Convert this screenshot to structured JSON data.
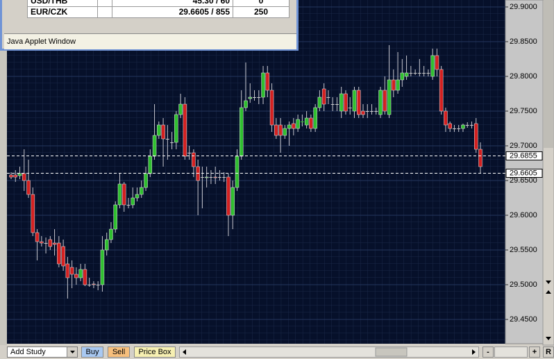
{
  "applet_window": {
    "rows": [
      [
        "USD/THB",
        "",
        "45.30 / 60",
        "0"
      ],
      [
        "EUR/CZK",
        "",
        "29.6605 / 855",
        "250"
      ]
    ],
    "status": "Java Applet Window"
  },
  "chart_data": {
    "type": "candlestick",
    "open": [
      29.658,
      29.658,
      29.657,
      29.66,
      29.65,
      29.63,
      29.575,
      29.562,
      29.56,
      29.565,
      29.56,
      29.56,
      29.555,
      29.53,
      29.525,
      29.515,
      29.51,
      29.522,
      29.5,
      29.501,
      29.5,
      29.5,
      29.55,
      29.565,
      29.58,
      29.615,
      29.645,
      29.615,
      29.615,
      29.625,
      29.63,
      29.64,
      29.66,
      29.685,
      29.715,
      29.73,
      29.71,
      29.705,
      29.705,
      29.745,
      29.76,
      29.69,
      29.69,
      29.67,
      29.655,
      29.654,
      29.655,
      29.655,
      29.655,
      29.655,
      29.655,
      29.6,
      29.64,
      29.685,
      29.755,
      29.768,
      29.77,
      29.77,
      29.77,
      29.805,
      29.78,
      29.73,
      29.73,
      29.715,
      29.725,
      29.732,
      29.725,
      29.734,
      29.73,
      29.74,
      29.725,
      29.755,
      29.782,
      29.77,
      29.76,
      29.76,
      29.75,
      29.775,
      29.755,
      29.75,
      29.78,
      29.75,
      29.75,
      29.75,
      29.75,
      29.745,
      29.78,
      29.745,
      29.795,
      29.78,
      29.795,
      29.8,
      29.805,
      29.805,
      29.805,
      29.805,
      29.805,
      29.8,
      29.83,
      29.81,
      29.75,
      29.732,
      29.725,
      29.725,
      29.725,
      29.73,
      29.73,
      29.732,
      29.695
    ],
    "high": [
      29.662,
      29.665,
      29.67,
      29.695,
      29.68,
      29.64,
      29.58,
      29.57,
      29.568,
      29.57,
      29.58,
      29.57,
      29.565,
      29.54,
      29.535,
      29.525,
      29.53,
      29.53,
      29.51,
      29.505,
      29.505,
      29.57,
      29.575,
      29.59,
      29.62,
      29.66,
      29.648,
      29.625,
      29.64,
      29.64,
      29.65,
      29.67,
      29.695,
      29.76,
      29.735,
      29.74,
      29.73,
      29.72,
      29.75,
      29.775,
      29.77,
      29.7,
      29.695,
      29.68,
      29.67,
      29.67,
      29.665,
      29.67,
      29.665,
      29.662,
      29.66,
      29.65,
      29.695,
      29.78,
      29.82,
      29.79,
      29.78,
      29.78,
      29.815,
      29.815,
      29.79,
      29.74,
      29.74,
      29.73,
      29.735,
      29.74,
      29.745,
      29.745,
      29.75,
      29.745,
      29.76,
      29.78,
      29.79,
      29.78,
      29.77,
      29.77,
      29.785,
      29.78,
      29.77,
      29.785,
      29.785,
      29.76,
      29.76,
      29.76,
      29.755,
      29.785,
      29.8,
      29.845,
      29.81,
      29.835,
      29.825,
      29.83,
      29.815,
      29.81,
      29.825,
      29.815,
      29.81,
      29.84,
      29.84,
      29.815,
      29.755,
      29.735,
      29.73,
      29.73,
      29.732,
      29.734,
      29.735,
      29.74,
      29.705
    ],
    "low": [
      29.652,
      29.648,
      29.652,
      29.635,
      29.625,
      29.57,
      29.535,
      29.555,
      29.545,
      29.55,
      29.542,
      29.525,
      29.52,
      29.48,
      29.495,
      29.5,
      29.505,
      29.498,
      29.497,
      29.495,
      29.492,
      29.49,
      29.542,
      29.56,
      29.575,
      29.61,
      29.605,
      29.61,
      29.61,
      29.62,
      29.625,
      29.635,
      29.655,
      29.68,
      29.71,
      29.67,
      29.68,
      29.695,
      29.695,
      29.74,
      29.68,
      29.68,
      29.655,
      29.6,
      29.61,
      29.64,
      29.645,
      29.645,
      29.65,
      29.648,
      29.57,
      29.58,
      29.635,
      29.68,
      29.75,
      29.762,
      29.765,
      29.76,
      29.76,
      29.77,
      29.72,
      29.71,
      29.69,
      29.71,
      29.7,
      29.715,
      29.72,
      29.728,
      29.725,
      29.72,
      29.72,
      29.75,
      29.75,
      29.76,
      29.75,
      29.75,
      29.74,
      29.745,
      29.745,
      29.74,
      29.74,
      29.74,
      29.74,
      29.745,
      29.745,
      29.74,
      29.745,
      29.74,
      29.77,
      29.775,
      29.785,
      29.795,
      29.8,
      29.802,
      29.8,
      29.8,
      29.8,
      29.795,
      29.8,
      29.745,
      29.72,
      29.72,
      29.72,
      29.72,
      29.72,
      29.726,
      29.725,
      29.69,
      29.66
    ],
    "close": [
      29.655,
      29.655,
      29.66,
      29.65,
      29.63,
      29.575,
      29.562,
      29.56,
      29.56,
      29.555,
      29.558,
      29.53,
      29.527,
      29.51,
      29.515,
      29.51,
      29.522,
      29.5,
      29.5,
      29.5,
      29.5,
      29.55,
      29.565,
      29.58,
      29.615,
      29.645,
      29.615,
      29.615,
      29.625,
      29.63,
      29.64,
      29.66,
      29.685,
      29.715,
      29.73,
      29.71,
      29.71,
      29.705,
      29.745,
      29.76,
      29.685,
      29.69,
      29.67,
      29.65,
      29.655,
      29.655,
      29.655,
      29.654,
      29.655,
      29.655,
      29.6,
      29.64,
      29.685,
      29.755,
      29.765,
      29.77,
      29.77,
      29.77,
      29.805,
      29.78,
      29.73,
      29.715,
      29.715,
      29.725,
      29.73,
      29.725,
      29.738,
      29.735,
      29.74,
      29.725,
      29.755,
      29.77,
      29.76,
      29.77,
      29.76,
      29.76,
      29.775,
      29.75,
      29.755,
      29.78,
      29.745,
      29.745,
      29.75,
      29.75,
      29.75,
      29.78,
      29.75,
      29.795,
      29.78,
      29.795,
      29.805,
      29.805,
      29.805,
      29.805,
      29.805,
      29.805,
      29.805,
      29.83,
      29.81,
      29.75,
      29.73,
      29.725,
      29.725,
      29.725,
      29.73,
      29.73,
      29.73,
      29.695,
      29.67
    ],
    "up_color": "#2fbf2f",
    "down_color": "#d42020",
    "ylim": [
      29.415,
      29.91
    ],
    "yticks": [
      {
        "value": 29.45,
        "label": "29.4500"
      },
      {
        "value": 29.5,
        "label": "29.5000"
      },
      {
        "value": 29.55,
        "label": "29.5500"
      },
      {
        "value": 29.6,
        "label": "29.6000"
      },
      {
        "value": 29.65,
        "label": "29.6500"
      },
      {
        "value": 29.7,
        "label": "29.7000"
      },
      {
        "value": 29.75,
        "label": "29.7500"
      },
      {
        "value": 29.8,
        "label": "29.8000"
      },
      {
        "value": 29.85,
        "label": "29.8500"
      },
      {
        "value": 29.9,
        "label": "29.9000"
      }
    ],
    "price_lines": [
      29.6855,
      29.6605
    ],
    "grid": true
  },
  "toolbar": {
    "study_select": "Add Study",
    "buttons": [
      "Buy",
      "Sell",
      "Price Box"
    ],
    "zoom_out": "-",
    "zoom_in": "+",
    "reset": "R"
  }
}
